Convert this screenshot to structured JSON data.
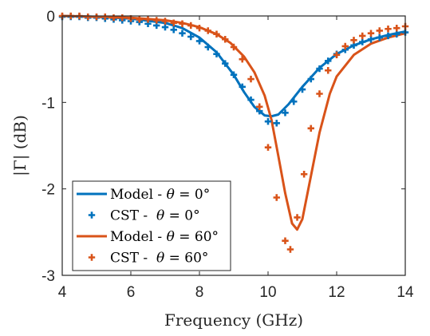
{
  "chart_data": {
    "type": "line",
    "xlabel": "Frequency (GHz)",
    "ylabel": "|Γ| (dB)",
    "xlim": [
      4,
      14
    ],
    "ylim": [
      -3,
      0
    ],
    "xticks": [
      4,
      6,
      8,
      10,
      12,
      14
    ],
    "yticks": [
      0,
      -1,
      -2,
      -3
    ],
    "grid": false,
    "legend_position": "bottom-left",
    "series": [
      {
        "name": "Model - θ = 0°",
        "legend": {
          "prefix": "Model - ",
          "symbol": "θ",
          "suffix": " = 0°"
        },
        "style": "line",
        "color": "#0072BD",
        "x": [
          4.0,
          5.0,
          6.0,
          7.0,
          7.5,
          8.0,
          8.5,
          9.0,
          9.3,
          9.6,
          9.9,
          10.1,
          10.3,
          10.6,
          11.0,
          11.5,
          12.0,
          12.5,
          13.0,
          13.5,
          14.0
        ],
        "y": [
          0.0,
          -0.01,
          -0.03,
          -0.08,
          -0.14,
          -0.25,
          -0.42,
          -0.68,
          -0.88,
          -1.05,
          -1.15,
          -1.16,
          -1.14,
          -1.02,
          -0.82,
          -0.6,
          -0.44,
          -0.34,
          -0.27,
          -0.22,
          -0.18
        ]
      },
      {
        "name": "CST -  θ = 0°",
        "legend": {
          "prefix": "CST -  ",
          "symbol": "θ",
          "suffix": " = 0°"
        },
        "style": "marker",
        "color": "#0072BD",
        "x": [
          4.0,
          4.25,
          4.5,
          4.75,
          5.0,
          5.25,
          5.5,
          5.75,
          6.0,
          6.25,
          6.5,
          6.75,
          7.0,
          7.25,
          7.5,
          7.75,
          8.0,
          8.25,
          8.5,
          8.75,
          9.0,
          9.25,
          9.5,
          9.75,
          10.0,
          10.25,
          10.5,
          10.75,
          11.0,
          11.25,
          11.5,
          11.75,
          12.0,
          12.25,
          12.5,
          12.75,
          13.0,
          13.25,
          13.5,
          13.75,
          14.0
        ],
        "y": [
          -0.01,
          -0.01,
          -0.01,
          -0.02,
          -0.02,
          -0.03,
          -0.04,
          -0.05,
          -0.06,
          -0.07,
          -0.09,
          -0.11,
          -0.13,
          -0.16,
          -0.2,
          -0.24,
          -0.29,
          -0.36,
          -0.44,
          -0.55,
          -0.68,
          -0.82,
          -0.97,
          -1.1,
          -1.22,
          -1.24,
          -1.12,
          -0.99,
          -0.85,
          -0.73,
          -0.61,
          -0.52,
          -0.44,
          -0.39,
          -0.34,
          -0.3,
          -0.27,
          -0.25,
          -0.23,
          -0.21,
          -0.19
        ]
      },
      {
        "name": "Model - θ = 60°",
        "legend": {
          "prefix": "Model - ",
          "symbol": "θ",
          "suffix": " = 60°"
        },
        "style": "line",
        "color": "#D95319",
        "x": [
          4.0,
          5.0,
          6.0,
          7.0,
          7.5,
          8.0,
          8.5,
          8.9,
          9.3,
          9.6,
          9.9,
          10.1,
          10.3,
          10.5,
          10.7,
          10.85,
          11.0,
          11.2,
          11.5,
          11.8,
          12.0,
          12.5,
          13.0,
          13.5,
          14.0
        ],
        "y": [
          0.0,
          -0.01,
          -0.02,
          -0.05,
          -0.08,
          -0.13,
          -0.21,
          -0.31,
          -0.47,
          -0.65,
          -0.92,
          -1.2,
          -1.62,
          -2.05,
          -2.4,
          -2.47,
          -2.35,
          -1.95,
          -1.35,
          -0.9,
          -0.7,
          -0.45,
          -0.32,
          -0.25,
          -0.2
        ]
      },
      {
        "name": "CST -  θ = 60°",
        "legend": {
          "prefix": "CST -  ",
          "symbol": "θ",
          "suffix": " = 60°"
        },
        "style": "marker",
        "color": "#D95319",
        "x": [
          4.0,
          4.25,
          4.5,
          4.75,
          5.0,
          5.25,
          5.5,
          5.75,
          6.0,
          6.25,
          6.5,
          6.75,
          7.0,
          7.25,
          7.5,
          7.75,
          8.0,
          8.25,
          8.5,
          8.75,
          9.0,
          9.25,
          9.5,
          9.75,
          10.0,
          10.25,
          10.5,
          10.65,
          10.85,
          11.05,
          11.25,
          11.5,
          11.75,
          12.0,
          12.25,
          12.5,
          12.75,
          13.0,
          13.25,
          13.5,
          13.75,
          14.0
        ],
        "y": [
          0.0,
          0.0,
          0.0,
          -0.01,
          -0.01,
          -0.01,
          -0.02,
          -0.02,
          -0.03,
          -0.04,
          -0.04,
          -0.05,
          -0.06,
          -0.08,
          -0.09,
          -0.11,
          -0.14,
          -0.17,
          -0.21,
          -0.27,
          -0.36,
          -0.5,
          -0.73,
          -1.05,
          -1.52,
          -2.1,
          -2.6,
          -2.7,
          -2.33,
          -1.83,
          -1.3,
          -0.9,
          -0.63,
          -0.45,
          -0.35,
          -0.28,
          -0.23,
          -0.2,
          -0.17,
          -0.15,
          -0.14,
          -0.12
        ]
      }
    ]
  }
}
